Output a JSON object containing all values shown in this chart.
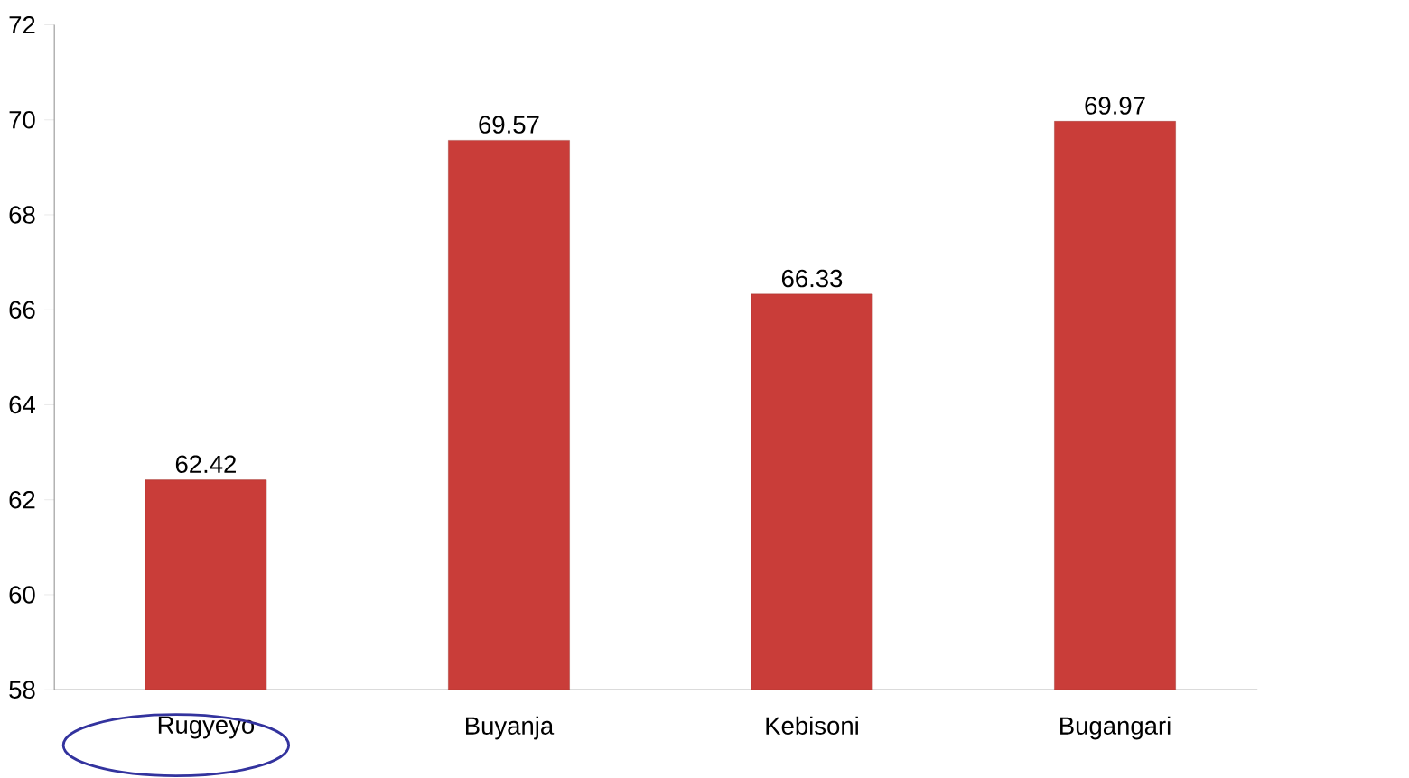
{
  "chart_data": {
    "type": "bar",
    "categories": [
      "Rugyeyo",
      "Buyanja",
      "Kebisoni",
      "Bugangari"
    ],
    "values": [
      62.42,
      69.57,
      66.33,
      69.97
    ],
    "color": "#c93d39",
    "ylim": [
      58,
      72
    ],
    "yticks": [
      58,
      60,
      62,
      64,
      66,
      68,
      70,
      72
    ],
    "data_labels": true
  }
}
